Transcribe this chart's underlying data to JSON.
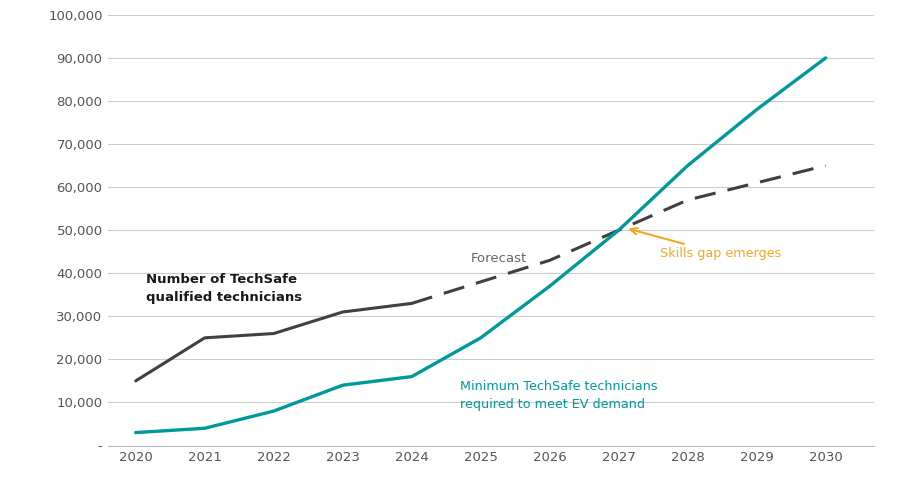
{
  "years": [
    2020,
    2021,
    2022,
    2023,
    2024,
    2025,
    2026,
    2027,
    2028,
    2029,
    2030
  ],
  "techsafe_qualified": [
    15000,
    25000,
    26000,
    31000,
    33000,
    38000,
    43000,
    50000,
    57000,
    61000,
    65000
  ],
  "ev_demand": [
    3000,
    4000,
    8000,
    14000,
    16000,
    25000,
    37000,
    50000,
    65000,
    78000,
    90000
  ],
  "techsafe_color": "#404040",
  "ev_color": "#009999",
  "annotation_color": "#f5a623",
  "background_color": "#ffffff",
  "grid_color": "#cccccc",
  "ylim": [
    0,
    100000
  ],
  "yticks": [
    0,
    10000,
    20000,
    30000,
    40000,
    50000,
    60000,
    70000,
    80000,
    90000,
    100000
  ],
  "ytick_labels": [
    "-",
    "10,000",
    "20,000",
    "30,000",
    "40,000",
    "50,000",
    "60,000",
    "70,000",
    "80,000",
    "90,000",
    "100,000"
  ],
  "label_techsafe": "Number of TechSafe\nqualified technicians",
  "label_ev": "Minimum TechSafe technicians\nrequired to meet EV demand",
  "label_forecast": "Forecast",
  "label_skills_gap": "Skills gap emerges",
  "forecast_split_idx": 4,
  "xlim_left": 2019.6,
  "xlim_right": 2030.7
}
